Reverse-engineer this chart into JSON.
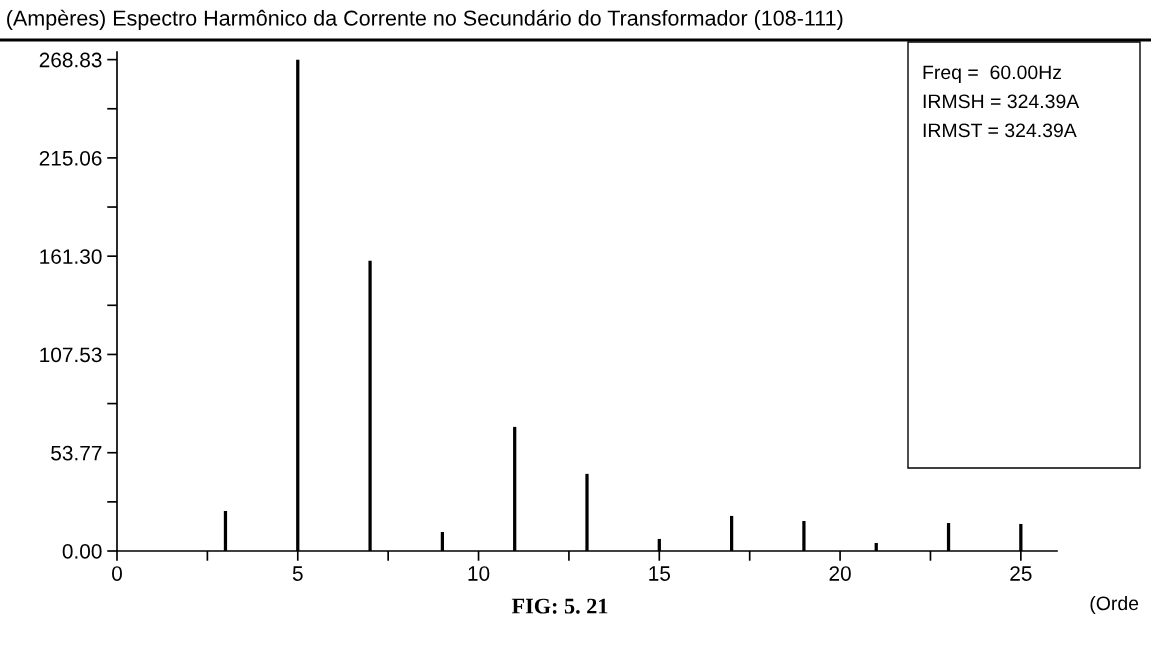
{
  "chart_data": {
    "type": "bar",
    "title": "(Ampères) Espectro Harmônico da Corrente no Secundário do Transformador (108-111)",
    "xlabel": "(Orde",
    "x": [
      3,
      5,
      7,
      9,
      11,
      13,
      15,
      17,
      19,
      21,
      23,
      25
    ],
    "values": [
      21.9,
      268.8,
      158.8,
      10.4,
      67.9,
      42.2,
      6.6,
      19.2,
      16.4,
      4.4,
      15.3,
      14.8
    ],
    "color": "#000000",
    "xlim": [
      0,
      26
    ],
    "xticks": [
      0,
      {
        "value": 2.5,
        "label": null
      },
      5,
      {
        "value": 7.5,
        "label": null
      },
      10,
      {
        "value": 12.5,
        "label": null
      },
      15,
      {
        "value": 17.5,
        "label": null
      },
      20,
      {
        "value": 22.5,
        "label": null
      },
      25
    ],
    "ylim": [
      0,
      273
    ],
    "yticks": [
      {
        "value": 0,
        "label": "0.00"
      },
      {
        "value": 26.88,
        "label": null
      },
      {
        "value": 53.77,
        "label": "53.77"
      },
      {
        "value": 80.65,
        "label": null
      },
      {
        "value": 107.53,
        "label": "107.53"
      },
      {
        "value": 134.42,
        "label": null
      },
      {
        "value": 161.3,
        "label": "161.30"
      },
      {
        "value": 188.18,
        "label": null
      },
      {
        "value": 215.06,
        "label": "215.06"
      },
      {
        "value": 241.95,
        "label": null
      },
      {
        "value": 268.83,
        "label": "268.83"
      }
    ],
    "grid": false,
    "legend": false,
    "annotations": [
      "FIG: 5. 21",
      "Freq =  60.00Hz",
      "IRMSH = 324.39A",
      "IRMST = 324.39A"
    ]
  }
}
